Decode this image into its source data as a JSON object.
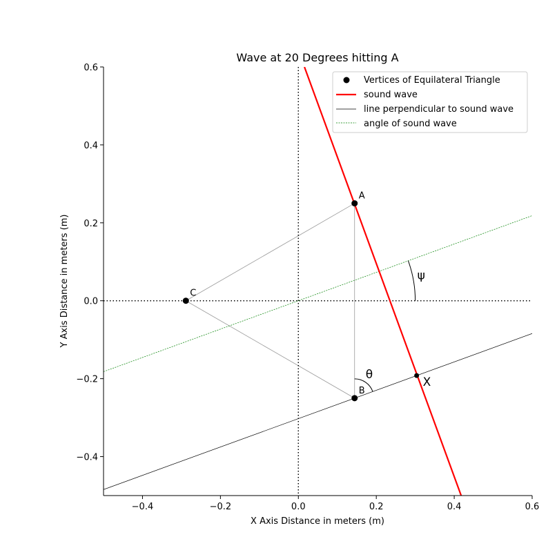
{
  "chart_data": {
    "type": "scatter",
    "title": "Wave at 20 Degrees hitting A",
    "xlabel": "X Axis Distance in meters (m)",
    "ylabel": "Y Axis Distance in meters (m)",
    "xlim": [
      -0.5,
      0.6
    ],
    "ylim": [
      -0.5,
      0.6
    ],
    "xticks": [
      -0.4,
      -0.2,
      0.0,
      0.2,
      0.4,
      0.6
    ],
    "yticks": [
      -0.4,
      -0.2,
      0.0,
      0.2,
      0.4,
      0.6
    ],
    "xtick_labels": [
      "−0.4",
      "−0.2",
      "0.0",
      "0.2",
      "0.4",
      "0.6"
    ],
    "ytick_labels": [
      "−0.4",
      "−0.2",
      "0.0",
      "0.2",
      "0.4",
      "0.6"
    ],
    "legend_position": "top-right",
    "vertices": [
      {
        "label": "A",
        "x": 0.1443,
        "y": 0.25
      },
      {
        "label": "B",
        "x": 0.1443,
        "y": -0.25
      },
      {
        "label": "C",
        "x": -0.2887,
        "y": 0.0
      }
    ],
    "intersection_point": {
      "label": "X",
      "x": 0.3036,
      "y": -0.192
    },
    "angle_labels": {
      "theta": "θ",
      "psi": "ψ"
    },
    "series": [
      {
        "name": "Vertices of Equilateral Triangle",
        "kind": "scatter",
        "color": "#000000"
      },
      {
        "name": "sound wave",
        "kind": "line",
        "color": "#ff0000",
        "x": [
          0.0156,
          0.4178
        ],
        "y": [
          0.6,
          -0.5
        ]
      },
      {
        "name": "line perpendicular to sound wave",
        "kind": "line",
        "color": "#000000",
        "x": [
          -0.5,
          0.6
        ],
        "y": [
          -0.4845,
          -0.0842
        ]
      },
      {
        "name": "angle of sound wave",
        "kind": "line",
        "color": "#008000",
        "x": [
          -0.5,
          0.6
        ],
        "y": [
          -0.182,
          0.2184
        ]
      }
    ]
  }
}
